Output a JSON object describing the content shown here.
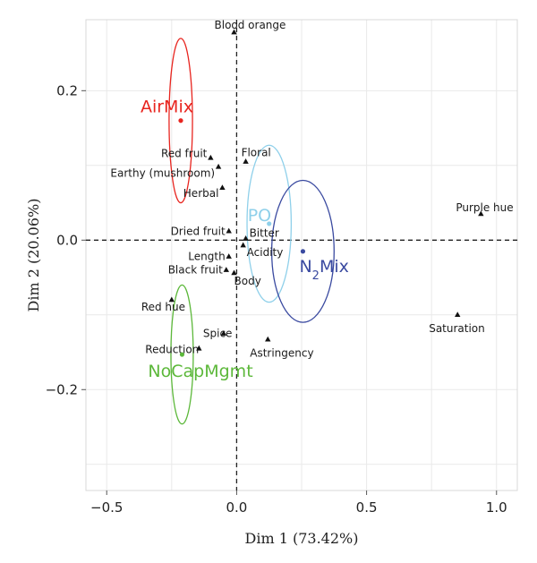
{
  "chart_data": {
    "type": "scatter",
    "xlabel": "Dim 1 (73.42%)",
    "ylabel": "Dim 2 (20.06%)",
    "xlim": [
      -0.58,
      1.08
    ],
    "ylim": [
      -0.335,
      0.295
    ],
    "x_ticks": [
      {
        "value": -0.5,
        "label": "−0.5"
      },
      {
        "value": 0.0,
        "label": "0.0"
      },
      {
        "value": 0.5,
        "label": "0.5"
      },
      {
        "value": 1.0,
        "label": "1.0"
      }
    ],
    "y_ticks": [
      {
        "value": -0.2,
        "label": "−0.2"
      },
      {
        "value": 0.0,
        "label": "0.0"
      },
      {
        "value": 0.2,
        "label": "0.2"
      }
    ],
    "grid": true,
    "reference_lines": [
      "x = 0 (dashed)",
      "y = 0 (dashed)"
    ],
    "variables": [
      {
        "name": "Blood orange",
        "x": -0.01,
        "y": 0.278
      },
      {
        "name": "Red fruit",
        "x": -0.1,
        "y": 0.11
      },
      {
        "name": "Floral",
        "x": 0.035,
        "y": 0.105
      },
      {
        "name": "Earthy (mushroom)",
        "x": -0.07,
        "y": 0.098
      },
      {
        "name": "Herbal",
        "x": -0.055,
        "y": 0.07
      },
      {
        "name": "Dried fruit",
        "x": -0.03,
        "y": 0.012
      },
      {
        "name": "Bitter",
        "x": 0.035,
        "y": 0.002
      },
      {
        "name": "Acidity",
        "x": 0.025,
        "y": -0.007
      },
      {
        "name": "Length",
        "x": -0.03,
        "y": -0.022
      },
      {
        "name": "Black fruit",
        "x": -0.04,
        "y": -0.04
      },
      {
        "name": "Body",
        "x": -0.01,
        "y": -0.044
      },
      {
        "name": "Purple hue",
        "x": 0.94,
        "y": 0.035
      },
      {
        "name": "Red hue",
        "x": -0.25,
        "y": -0.08
      },
      {
        "name": "Spice",
        "x": -0.05,
        "y": -0.125
      },
      {
        "name": "Reduction",
        "x": -0.145,
        "y": -0.145
      },
      {
        "name": "Astringency",
        "x": 0.12,
        "y": -0.133
      },
      {
        "name": "Saturation",
        "x": 0.85,
        "y": -0.1
      }
    ],
    "groups": [
      {
        "name": "AirMix",
        "label_parts": [
          "AirMix"
        ],
        "color": "#e8251f",
        "x": -0.215,
        "y": 0.16,
        "rx": 0.045,
        "ry": 0.11
      },
      {
        "name": "PO",
        "label_parts": [
          "PO"
        ],
        "color": "#8fd0ea",
        "x": 0.125,
        "y": 0.022,
        "rx": 0.085,
        "ry": 0.105
      },
      {
        "name": "N2Mix",
        "label_parts": [
          "N",
          "2",
          "Mix"
        ],
        "color": "#3a4aa0",
        "x": 0.255,
        "y": -0.015,
        "rx": 0.12,
        "ry": 0.095
      },
      {
        "name": "NoCapMgmt",
        "label_parts": [
          "NoCapMgmt"
        ],
        "color": "#5cb83a",
        "x": -0.21,
        "y": -0.153,
        "rx": 0.043,
        "ry": 0.093
      }
    ]
  }
}
